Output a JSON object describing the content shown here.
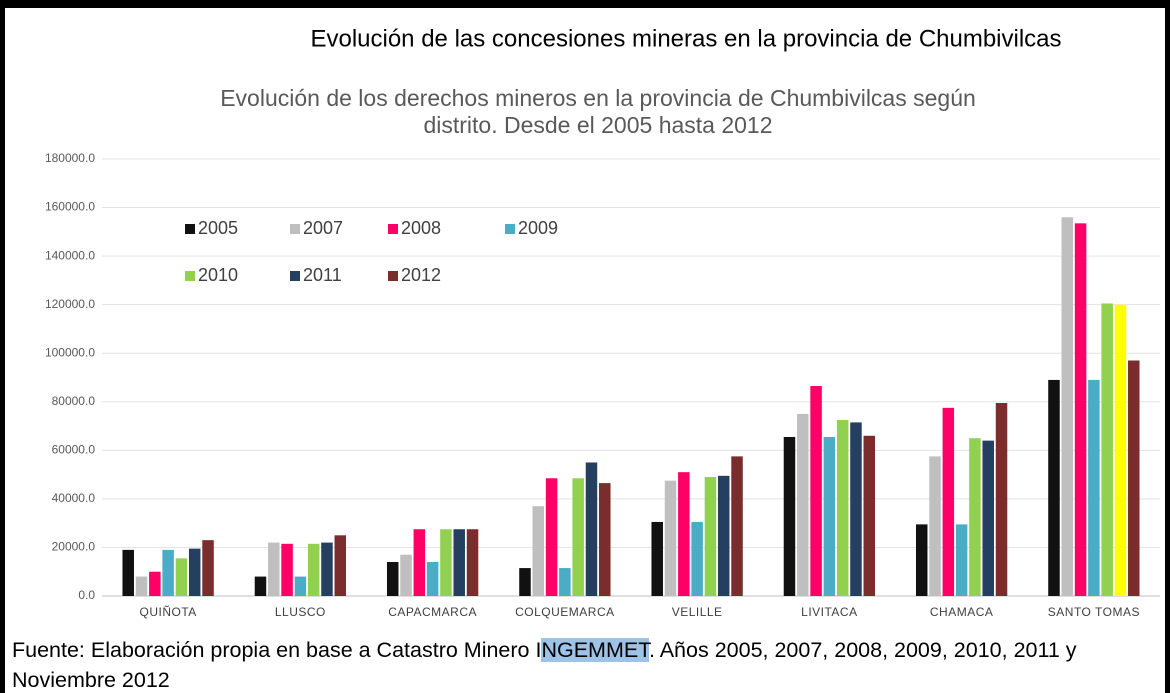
{
  "chart_data": {
    "type": "bar",
    "title": "Evolución de las concesiones mineras en la provincia de Chumbivilcas",
    "subtitle": [
      "Evolución de los derechos mineros en la provincia de Chumbivilcas según",
      "distrito. Desde el 2005 hasta 2012"
    ],
    "categories": [
      "QUIÑOTA",
      "LLUSCO",
      "CAPACMARCA",
      "COLQUEMARCA",
      "VELILLE",
      "LIVITACA",
      "CHAMACA",
      "SANTO TOMAS"
    ],
    "series": [
      {
        "name": "2005",
        "color": "#111111",
        "values": [
          19000,
          8000,
          14000,
          11500,
          30500,
          65500,
          29500,
          89000
        ]
      },
      {
        "name": "2007",
        "color": "#bfbfbf",
        "values": [
          8000,
          22000,
          17000,
          37000,
          47500,
          75000,
          57500,
          156000
        ]
      },
      {
        "name": "2008",
        "color": "#ff0066",
        "values": [
          10000,
          21500,
          27500,
          48500,
          51000,
          86500,
          77500,
          153500
        ]
      },
      {
        "name": "2009",
        "color": "#4bacc6",
        "values": [
          19000,
          8000,
          14000,
          11500,
          30500,
          65500,
          29500,
          89000
        ]
      },
      {
        "name": "2010",
        "color": "#92d050",
        "values": [
          15500,
          21500,
          27500,
          48500,
          49000,
          72500,
          65000,
          120500
        ]
      },
      {
        "name": "2011",
        "color": "#243f60",
        "colors": [
          "#243f60",
          "#243f60",
          "#243f60",
          "#243f60",
          "#243f60",
          "#243f60",
          "#243f60",
          "#ffff00"
        ],
        "values": [
          19500,
          22000,
          27500,
          55000,
          49500,
          71500,
          64000,
          120000
        ]
      },
      {
        "name": "2012",
        "color": "#7b2c2c",
        "values": [
          23000,
          25000,
          27500,
          46500,
          57500,
          66000,
          79500,
          97000
        ]
      }
    ],
    "ylim": [
      0,
      180000
    ],
    "yticks": [
      {
        "value": 0,
        "label": "0.0"
      },
      {
        "value": 20000,
        "label": "20000.0"
      },
      {
        "value": 40000,
        "label": "40000.0"
      },
      {
        "value": 60000,
        "label": "60000.0"
      },
      {
        "value": 80000,
        "label": "80000.0"
      },
      {
        "value": 100000,
        "label": "100000.0"
      },
      {
        "value": 120000,
        "label": "120000.0"
      },
      {
        "value": 140000,
        "label": "140000.0"
      },
      {
        "value": 160000,
        "label": "160000.0"
      },
      {
        "value": 180000,
        "label": "180000.0"
      }
    ],
    "grid": true,
    "legend": "top-left"
  },
  "source": [
    "Fuente: Elaboración propia en base a Catastro Minero I",
    "NGEMMET",
    ". Años 2005, 2007, 2008, 2009, 2010, 2011 y Noviembre 2012"
  ]
}
